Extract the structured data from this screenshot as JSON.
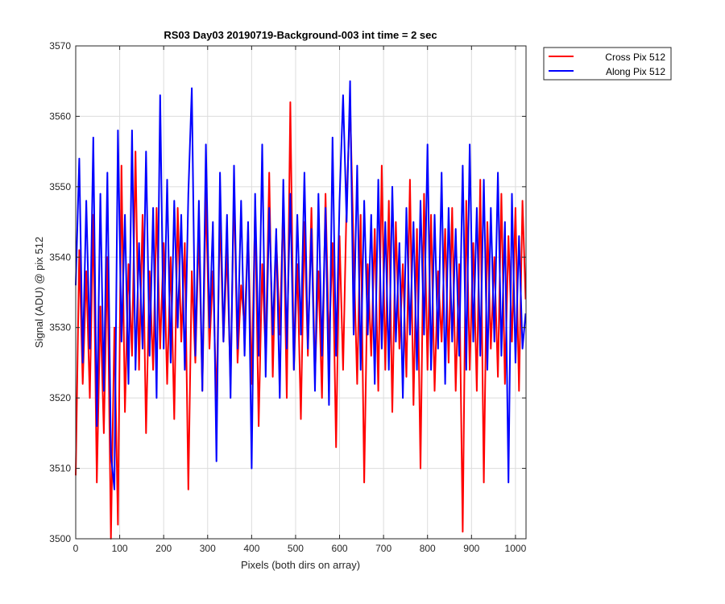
{
  "chart_data": {
    "type": "line",
    "title": "RS03 Day03 20190719-Background-003 int time = 2 sec",
    "xlabel": "Pixels (both dirs on array)",
    "ylabel": "Signal (ADU) @ pix 512",
    "xlim": [
      0,
      1024
    ],
    "ylim": [
      3500,
      3570
    ],
    "xticks": [
      0,
      100,
      200,
      300,
      400,
      500,
      600,
      700,
      800,
      900,
      1000
    ],
    "yticks": [
      3500,
      3510,
      3520,
      3530,
      3540,
      3550,
      3560,
      3570
    ],
    "grid": true,
    "legend_position": "outside-top-right",
    "series": [
      {
        "name": "Cross Pix 512",
        "color": "#ff0000",
        "x": [
          0,
          8,
          16,
          24,
          32,
          40,
          48,
          56,
          64,
          72,
          80,
          88,
          96,
          104,
          112,
          120,
          128,
          136,
          144,
          152,
          160,
          168,
          176,
          184,
          192,
          200,
          208,
          216,
          224,
          232,
          240,
          248,
          256,
          264,
          272,
          280,
          288,
          296,
          304,
          312,
          320,
          328,
          336,
          344,
          352,
          360,
          368,
          376,
          384,
          392,
          400,
          408,
          416,
          424,
          432,
          440,
          448,
          456,
          464,
          472,
          480,
          488,
          496,
          504,
          512,
          520,
          528,
          536,
          544,
          552,
          560,
          568,
          576,
          584,
          592,
          600,
          608,
          616,
          624,
          632,
          640,
          648,
          656,
          664,
          672,
          680,
          688,
          696,
          704,
          712,
          720,
          728,
          736,
          744,
          752,
          760,
          768,
          776,
          784,
          792,
          800,
          808,
          816,
          824,
          832,
          840,
          848,
          856,
          864,
          872,
          880,
          888,
          896,
          904,
          912,
          920,
          928,
          936,
          944,
          952,
          960,
          968,
          976,
          984,
          992,
          1000,
          1008,
          1016,
          1023
        ],
        "values": [
          3509,
          3541,
          3522,
          3538,
          3520,
          3546,
          3508,
          3533,
          3515,
          3540,
          3500,
          3530,
          3502,
          3553,
          3518,
          3539,
          3526,
          3555,
          3524,
          3546,
          3515,
          3538,
          3524,
          3547,
          3527,
          3542,
          3522,
          3540,
          3517,
          3547,
          3528,
          3542,
          3507,
          3538,
          3525,
          3544,
          3521,
          3549,
          3527,
          3538,
          3519,
          3546,
          3528,
          3541,
          3522,
          3550,
          3525,
          3536,
          3530,
          3544,
          3522,
          3547,
          3516,
          3539,
          3526,
          3552,
          3523,
          3543,
          3529,
          3548,
          3520,
          3562,
          3524,
          3539,
          3517,
          3545,
          3526,
          3547,
          3523,
          3538,
          3520,
          3549,
          3527,
          3542,
          3513,
          3543,
          3524,
          3548,
          3562,
          3541,
          3522,
          3546,
          3508,
          3539,
          3526,
          3544,
          3521,
          3553,
          3524,
          3548,
          3518,
          3545,
          3527,
          3539,
          3523,
          3551,
          3519,
          3544,
          3510,
          3549,
          3524,
          3546,
          3521,
          3538,
          3528,
          3544,
          3525,
          3547,
          3521,
          3539,
          3501,
          3548,
          3524,
          3542,
          3521,
          3551,
          3508,
          3545,
          3527,
          3540,
          3523,
          3549,
          3522,
          3543,
          3528,
          3547,
          3521,
          3548,
          3534
        ]
      },
      {
        "name": "Along Pix 512",
        "color": "#0000ff",
        "x": [
          0,
          8,
          16,
          24,
          32,
          40,
          48,
          56,
          64,
          72,
          80,
          88,
          96,
          104,
          112,
          120,
          128,
          136,
          144,
          152,
          160,
          168,
          176,
          184,
          192,
          200,
          208,
          216,
          224,
          232,
          240,
          248,
          256,
          264,
          272,
          280,
          288,
          296,
          304,
          312,
          320,
          328,
          336,
          344,
          352,
          360,
          368,
          376,
          384,
          392,
          400,
          408,
          416,
          424,
          432,
          440,
          448,
          456,
          464,
          472,
          480,
          488,
          496,
          504,
          512,
          520,
          528,
          536,
          544,
          552,
          560,
          568,
          576,
          584,
          592,
          600,
          608,
          616,
          624,
          632,
          640,
          648,
          656,
          664,
          672,
          680,
          688,
          696,
          704,
          712,
          720,
          728,
          736,
          744,
          752,
          760,
          768,
          776,
          784,
          792,
          800,
          808,
          816,
          824,
          832,
          840,
          848,
          856,
          864,
          872,
          880,
          888,
          896,
          904,
          912,
          920,
          928,
          936,
          944,
          952,
          960,
          968,
          976,
          984,
          992,
          1000,
          1008,
          1016,
          1023
        ],
        "values": [
          3536,
          3554,
          3525,
          3548,
          3527,
          3557,
          3516,
          3549,
          3521,
          3552,
          3512,
          3507,
          3558,
          3528,
          3546,
          3522,
          3558,
          3524,
          3542,
          3527,
          3555,
          3526,
          3547,
          3520,
          3563,
          3527,
          3551,
          3525,
          3548,
          3530,
          3546,
          3524,
          3549,
          3564,
          3526,
          3548,
          3521,
          3556,
          3530,
          3545,
          3511,
          3552,
          3528,
          3546,
          3520,
          3553,
          3527,
          3548,
          3526,
          3545,
          3510,
          3549,
          3526,
          3556,
          3523,
          3547,
          3529,
          3544,
          3520,
          3551,
          3527,
          3549,
          3524,
          3546,
          3529,
          3552,
          3527,
          3544,
          3521,
          3549,
          3526,
          3547,
          3519,
          3557,
          3526,
          3548,
          3563,
          3545,
          3565,
          3529,
          3553,
          3524,
          3548,
          3529,
          3546,
          3522,
          3551,
          3527,
          3545,
          3524,
          3550,
          3528,
          3542,
          3520,
          3547,
          3529,
          3545,
          3524,
          3548,
          3529,
          3556,
          3524,
          3546,
          3527,
          3552,
          3522,
          3547,
          3528,
          3544,
          3526,
          3553,
          3524,
          3556,
          3528,
          3547,
          3526,
          3551,
          3524,
          3547,
          3528,
          3552,
          3526,
          3545,
          3508,
          3549,
          3525,
          3543,
          3527,
          3532
        ]
      }
    ]
  }
}
